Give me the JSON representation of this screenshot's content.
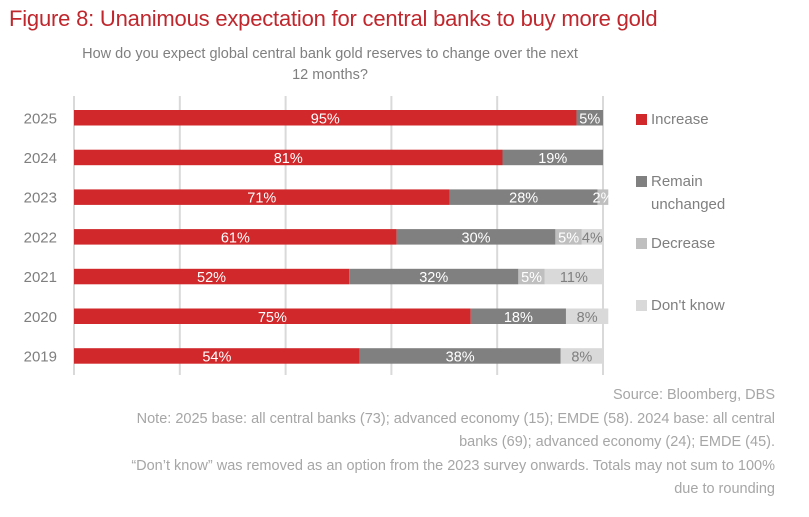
{
  "header": {
    "title": "Figure 8: Unanimous expectation for central banks to buy more gold"
  },
  "footer": {
    "source": "Source: Bloomberg, DBS",
    "note_line1": "Note: 2025 base: all central banks (73); advanced economy (15); EMDE (58). 2024 base: all central",
    "note_line2": "banks (69); advanced economy (24); EMDE (45).",
    "note_line3": "“Don’t know” was removed as an option from the 2023 survey onwards. Totals may not sum to 100%",
    "note_line4": "due to rounding"
  },
  "chart_data": {
    "type": "bar",
    "orientation": "horizontal",
    "stacked": true,
    "title": "How do you expect global central bank gold reserves to change over the next 12 months?",
    "subtitle_line1": "How do you expect global central bank gold reserves to change over the next",
    "subtitle_line2": "12 months?",
    "xlabel": "",
    "ylabel": "",
    "xlim": [
      0,
      100
    ],
    "grid": true,
    "gridline_step": 20,
    "legend_position": "right",
    "categories": [
      "2025",
      "2024",
      "2023",
      "2022",
      "2021",
      "2020",
      "2019"
    ],
    "series": [
      {
        "name": "Increase",
        "color": "#D0282B",
        "label_color": "#ffffff",
        "values": [
          95,
          81,
          71,
          61,
          52,
          75,
          54
        ]
      },
      {
        "name": "Remain unchanged",
        "color": "#808080",
        "label_color": "#ffffff",
        "values": [
          5,
          19,
          28,
          30,
          32,
          18,
          38
        ]
      },
      {
        "name": "Decrease",
        "color": "#BFBFBF",
        "label_color": "#ffffff",
        "values": [
          0,
          0,
          2,
          5,
          5,
          0,
          0
        ]
      },
      {
        "name": "Don't know",
        "color": "#D9D9D9",
        "label_color": "#7f7f7f",
        "values": [
          0,
          0,
          0,
          4,
          11,
          8,
          8
        ]
      }
    ],
    "legend": [
      {
        "label": "Increase",
        "color": "#D0282B"
      },
      {
        "label": "Remain unchanged",
        "color": "#808080"
      },
      {
        "label": "Decrease",
        "color": "#BFBFBF"
      },
      {
        "label": "Don't know",
        "color": "#D9D9D9"
      }
    ]
  }
}
